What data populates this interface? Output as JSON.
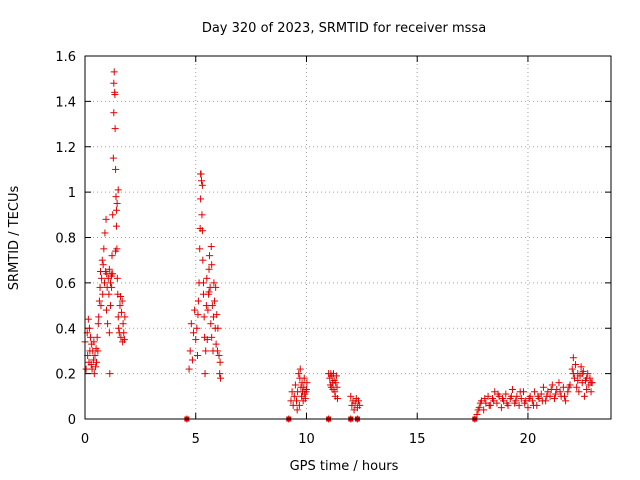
{
  "chart_data": {
    "type": "scatter",
    "title": "Day 320 of 2023, SRMTID for receiver mssa",
    "xlabel": "GPS time / hours",
    "ylabel": "SRMTID / TECUs",
    "xlim": [
      0,
      23.75
    ],
    "ylim": [
      0,
      1.6
    ],
    "grid": true,
    "marker": "plus",
    "color": "#e00000",
    "x_ticks": [
      0,
      5,
      10,
      15,
      20
    ],
    "x_tick_labels": [
      "0",
      "5",
      "10",
      "15",
      "20"
    ],
    "y_ticks": [
      0,
      0.2,
      0.4,
      0.6,
      0.8,
      1.0,
      1.2,
      1.4,
      1.6
    ],
    "y_tick_labels": [
      "0",
      "0.2",
      "0.4",
      "0.6",
      "0.8",
      "1",
      "1.2",
      "1.4",
      "1.6"
    ],
    "series": [
      {
        "name": "SRMTID",
        "points": [
          [
            0.0,
            0.34
          ],
          [
            0.05,
            0.22
          ],
          [
            0.1,
            0.38
          ],
          [
            0.12,
            0.28
          ],
          [
            0.15,
            0.44
          ],
          [
            0.18,
            0.25
          ],
          [
            0.2,
            0.4
          ],
          [
            0.22,
            0.3
          ],
          [
            0.25,
            0.36
          ],
          [
            0.28,
            0.24
          ],
          [
            0.3,
            0.33
          ],
          [
            0.32,
            0.22
          ],
          [
            0.35,
            0.3
          ],
          [
            0.38,
            0.26
          ],
          [
            0.4,
            0.34
          ],
          [
            0.42,
            0.2
          ],
          [
            0.45,
            0.28
          ],
          [
            0.48,
            0.23
          ],
          [
            0.5,
            0.31
          ],
          [
            0.52,
            0.25
          ],
          [
            0.55,
            0.36
          ],
          [
            0.58,
            0.3
          ],
          [
            0.6,
            0.42
          ],
          [
            0.62,
            0.45
          ],
          [
            0.65,
            0.52
          ],
          [
            0.68,
            0.58
          ],
          [
            0.7,
            0.65
          ],
          [
            0.72,
            0.5
          ],
          [
            0.75,
            0.62
          ],
          [
            0.78,
            0.7
          ],
          [
            0.8,
            0.55
          ],
          [
            0.82,
            0.68
          ],
          [
            0.85,
            0.75
          ],
          [
            0.88,
            0.6
          ],
          [
            0.9,
            0.82
          ],
          [
            0.92,
            0.65
          ],
          [
            0.95,
            0.88
          ],
          [
            0.97,
            0.48
          ],
          [
            1.0,
            0.58
          ],
          [
            1.02,
            0.42
          ],
          [
            1.05,
            0.62
          ],
          [
            1.08,
            0.55
          ],
          [
            1.1,
            0.38
          ],
          [
            1.12,
            0.2
          ],
          [
            1.15,
            0.5
          ],
          [
            1.18,
            0.64
          ],
          [
            1.2,
            0.58
          ],
          [
            1.22,
            0.72
          ],
          [
            1.25,
            0.9
          ],
          [
            1.28,
            1.15
          ],
          [
            1.3,
            1.35
          ],
          [
            1.32,
            1.53
          ],
          [
            1.34,
            1.44
          ],
          [
            1.36,
            1.28
          ],
          [
            1.38,
            1.1
          ],
          [
            1.4,
            0.98
          ],
          [
            1.42,
            0.85
          ],
          [
            1.44,
            0.75
          ],
          [
            1.46,
            0.62
          ],
          [
            1.48,
            0.55
          ],
          [
            1.5,
            0.45
          ],
          [
            1.52,
            0.4
          ],
          [
            1.55,
            0.38
          ],
          [
            1.58,
            0.5
          ],
          [
            1.6,
            0.54
          ],
          [
            1.62,
            0.36
          ],
          [
            1.65,
            0.47
          ],
          [
            1.68,
            0.52
          ],
          [
            1.7,
            0.34
          ],
          [
            1.72,
            0.42
          ],
          [
            1.75,
            0.38
          ],
          [
            1.78,
            0.35
          ],
          [
            1.8,
            0.45
          ],
          [
            1.3,
            1.48
          ],
          [
            1.35,
            1.43
          ],
          [
            1.45,
            0.95
          ],
          [
            1.5,
            1.01
          ],
          [
            1.42,
            0.92
          ],
          [
            1.38,
            0.74
          ],
          [
            1.25,
            0.64
          ],
          [
            1.2,
            0.63
          ],
          [
            1.15,
            0.6
          ],
          [
            1.1,
            0.66
          ],
          [
            0.98,
            0.64
          ],
          [
            4.6,
            0.0
          ],
          [
            4.7,
            0.22
          ],
          [
            4.75,
            0.3
          ],
          [
            4.8,
            0.42
          ],
          [
            4.85,
            0.26
          ],
          [
            4.9,
            0.38
          ],
          [
            4.95,
            0.48
          ],
          [
            5.0,
            0.35
          ],
          [
            5.05,
            0.4
          ],
          [
            5.08,
            0.28
          ],
          [
            5.1,
            0.46
          ],
          [
            5.12,
            0.52
          ],
          [
            5.15,
            0.6
          ],
          [
            5.18,
            0.75
          ],
          [
            5.2,
            0.84
          ],
          [
            5.22,
            0.97
          ],
          [
            5.24,
            1.08
          ],
          [
            5.26,
            1.05
          ],
          [
            5.28,
            0.9
          ],
          [
            5.3,
            1.03
          ],
          [
            5.32,
            0.7
          ],
          [
            5.35,
            0.55
          ],
          [
            5.38,
            0.45
          ],
          [
            5.4,
            0.36
          ],
          [
            5.42,
            0.2
          ],
          [
            5.45,
            0.3
          ],
          [
            5.48,
            0.5
          ],
          [
            5.5,
            0.62
          ],
          [
            5.52,
            0.35
          ],
          [
            5.55,
            0.48
          ],
          [
            5.58,
            0.55
          ],
          [
            5.6,
            0.66
          ],
          [
            5.62,
            0.72
          ],
          [
            5.65,
            0.58
          ],
          [
            5.68,
            0.42
          ],
          [
            5.7,
            0.76
          ],
          [
            5.72,
            0.68
          ],
          [
            5.75,
            0.5
          ],
          [
            5.78,
            0.3
          ],
          [
            5.8,
            0.45
          ],
          [
            5.82,
            0.6
          ],
          [
            5.85,
            0.52
          ],
          [
            5.88,
            0.4
          ],
          [
            5.9,
            0.58
          ],
          [
            5.92,
            0.33
          ],
          [
            5.95,
            0.46
          ],
          [
            5.98,
            0.3
          ],
          [
            6.0,
            0.4
          ],
          [
            6.05,
            0.28
          ],
          [
            6.08,
            0.2
          ],
          [
            6.1,
            0.25
          ],
          [
            6.12,
            0.18
          ],
          [
            5.22,
            1.08
          ],
          [
            5.3,
            0.83
          ],
          [
            5.35,
            0.6
          ],
          [
            5.6,
            0.56
          ],
          [
            5.72,
            0.36
          ],
          [
            9.2,
            0.0
          ],
          [
            9.3,
            0.08
          ],
          [
            9.35,
            0.12
          ],
          [
            9.4,
            0.06
          ],
          [
            9.45,
            0.1
          ],
          [
            9.5,
            0.15
          ],
          [
            9.55,
            0.08
          ],
          [
            9.6,
            0.12
          ],
          [
            9.65,
            0.2
          ],
          [
            9.7,
            0.18
          ],
          [
            9.72,
            0.22
          ],
          [
            9.75,
            0.14
          ],
          [
            9.78,
            0.1
          ],
          [
            9.8,
            0.16
          ],
          [
            9.82,
            0.12
          ],
          [
            9.85,
            0.08
          ],
          [
            9.88,
            0.14
          ],
          [
            9.9,
            0.18
          ],
          [
            9.92,
            0.11
          ],
          [
            9.95,
            0.09
          ],
          [
            9.98,
            0.12
          ],
          [
            10.0,
            0.13
          ],
          [
            10.02,
            0.16
          ],
          [
            9.68,
            0.06
          ],
          [
            9.58,
            0.04
          ],
          [
            11.0,
            0.0
          ],
          [
            11.0,
            0.2
          ],
          [
            11.05,
            0.18
          ],
          [
            11.08,
            0.15
          ],
          [
            11.1,
            0.2
          ],
          [
            11.12,
            0.14
          ],
          [
            11.15,
            0.19
          ],
          [
            11.18,
            0.16
          ],
          [
            11.2,
            0.13
          ],
          [
            11.22,
            0.2
          ],
          [
            11.25,
            0.17
          ],
          [
            11.28,
            0.12
          ],
          [
            11.3,
            0.1
          ],
          [
            11.32,
            0.16
          ],
          [
            11.35,
            0.19
          ],
          [
            11.38,
            0.14
          ],
          [
            11.4,
            0.09
          ],
          [
            12.0,
            0.0
          ],
          [
            12.3,
            0.0
          ],
          [
            12.0,
            0.1
          ],
          [
            12.05,
            0.06
          ],
          [
            12.1,
            0.08
          ],
          [
            12.15,
            0.04
          ],
          [
            12.2,
            0.07
          ],
          [
            12.25,
            0.09
          ],
          [
            12.3,
            0.05
          ],
          [
            12.35,
            0.08
          ],
          [
            12.4,
            0.06
          ],
          [
            17.6,
            0.0
          ],
          [
            17.7,
            0.02
          ],
          [
            17.8,
            0.05
          ],
          [
            17.9,
            0.08
          ],
          [
            18.0,
            0.04
          ],
          [
            18.1,
            0.07
          ],
          [
            18.2,
            0.1
          ],
          [
            18.3,
            0.06
          ],
          [
            18.4,
            0.09
          ],
          [
            18.5,
            0.12
          ],
          [
            18.6,
            0.07
          ],
          [
            18.7,
            0.1
          ],
          [
            18.8,
            0.05
          ],
          [
            18.9,
            0.08
          ],
          [
            19.0,
            0.11
          ],
          [
            19.1,
            0.06
          ],
          [
            19.2,
            0.09
          ],
          [
            19.3,
            0.13
          ],
          [
            19.4,
            0.07
          ],
          [
            19.5,
            0.1
          ],
          [
            19.6,
            0.06
          ],
          [
            19.7,
            0.09
          ],
          [
            19.8,
            0.12
          ],
          [
            19.9,
            0.08
          ],
          [
            20.0,
            0.05
          ],
          [
            20.1,
            0.1
          ],
          [
            20.2,
            0.08
          ],
          [
            20.3,
            0.12
          ],
          [
            20.4,
            0.06
          ],
          [
            20.5,
            0.09
          ],
          [
            20.6,
            0.11
          ],
          [
            20.7,
            0.14
          ],
          [
            20.8,
            0.08
          ],
          [
            20.9,
            0.12
          ],
          [
            21.0,
            0.1
          ],
          [
            21.1,
            0.15
          ],
          [
            21.2,
            0.09
          ],
          [
            21.3,
            0.13
          ],
          [
            21.4,
            0.16
          ],
          [
            21.5,
            0.1
          ],
          [
            21.6,
            0.14
          ],
          [
            21.7,
            0.08
          ],
          [
            21.8,
            0.12
          ],
          [
            21.9,
            0.15
          ],
          [
            22.0,
            0.22
          ],
          [
            22.05,
            0.27
          ],
          [
            22.1,
            0.18
          ],
          [
            22.15,
            0.24
          ],
          [
            22.2,
            0.14
          ],
          [
            22.25,
            0.2
          ],
          [
            22.3,
            0.12
          ],
          [
            22.35,
            0.19
          ],
          [
            22.4,
            0.23
          ],
          [
            22.45,
            0.16
          ],
          [
            22.5,
            0.21
          ],
          [
            22.55,
            0.1
          ],
          [
            22.6,
            0.17
          ],
          [
            22.65,
            0.13
          ],
          [
            22.7,
            0.2
          ],
          [
            22.75,
            0.15
          ],
          [
            22.8,
            0.18
          ],
          [
            22.85,
            0.12
          ],
          [
            22.9,
            0.16
          ],
          [
            17.75,
            0.04
          ],
          [
            17.85,
            0.07
          ],
          [
            18.05,
            0.09
          ],
          [
            18.25,
            0.06
          ],
          [
            18.45,
            0.08
          ],
          [
            18.65,
            0.11
          ],
          [
            18.85,
            0.09
          ],
          [
            19.05,
            0.07
          ],
          [
            19.25,
            0.1
          ],
          [
            19.45,
            0.08
          ],
          [
            19.65,
            0.12
          ],
          [
            19.85,
            0.07
          ],
          [
            20.05,
            0.09
          ],
          [
            20.25,
            0.06
          ],
          [
            20.45,
            0.1
          ],
          [
            20.65,
            0.08
          ],
          [
            20.85,
            0.1
          ],
          [
            21.05,
            0.13
          ],
          [
            21.25,
            0.11
          ],
          [
            21.45,
            0.12
          ],
          [
            21.65,
            0.1
          ],
          [
            21.85,
            0.14
          ],
          [
            22.05,
            0.2
          ],
          [
            22.25,
            0.17
          ],
          [
            22.45,
            0.2
          ],
          [
            22.65,
            0.18
          ],
          [
            22.85,
            0.16
          ]
        ]
      }
    ],
    "gap_markers_x": [
      4.6,
      9.2,
      11.0,
      12.0,
      12.3,
      17.6
    ]
  }
}
